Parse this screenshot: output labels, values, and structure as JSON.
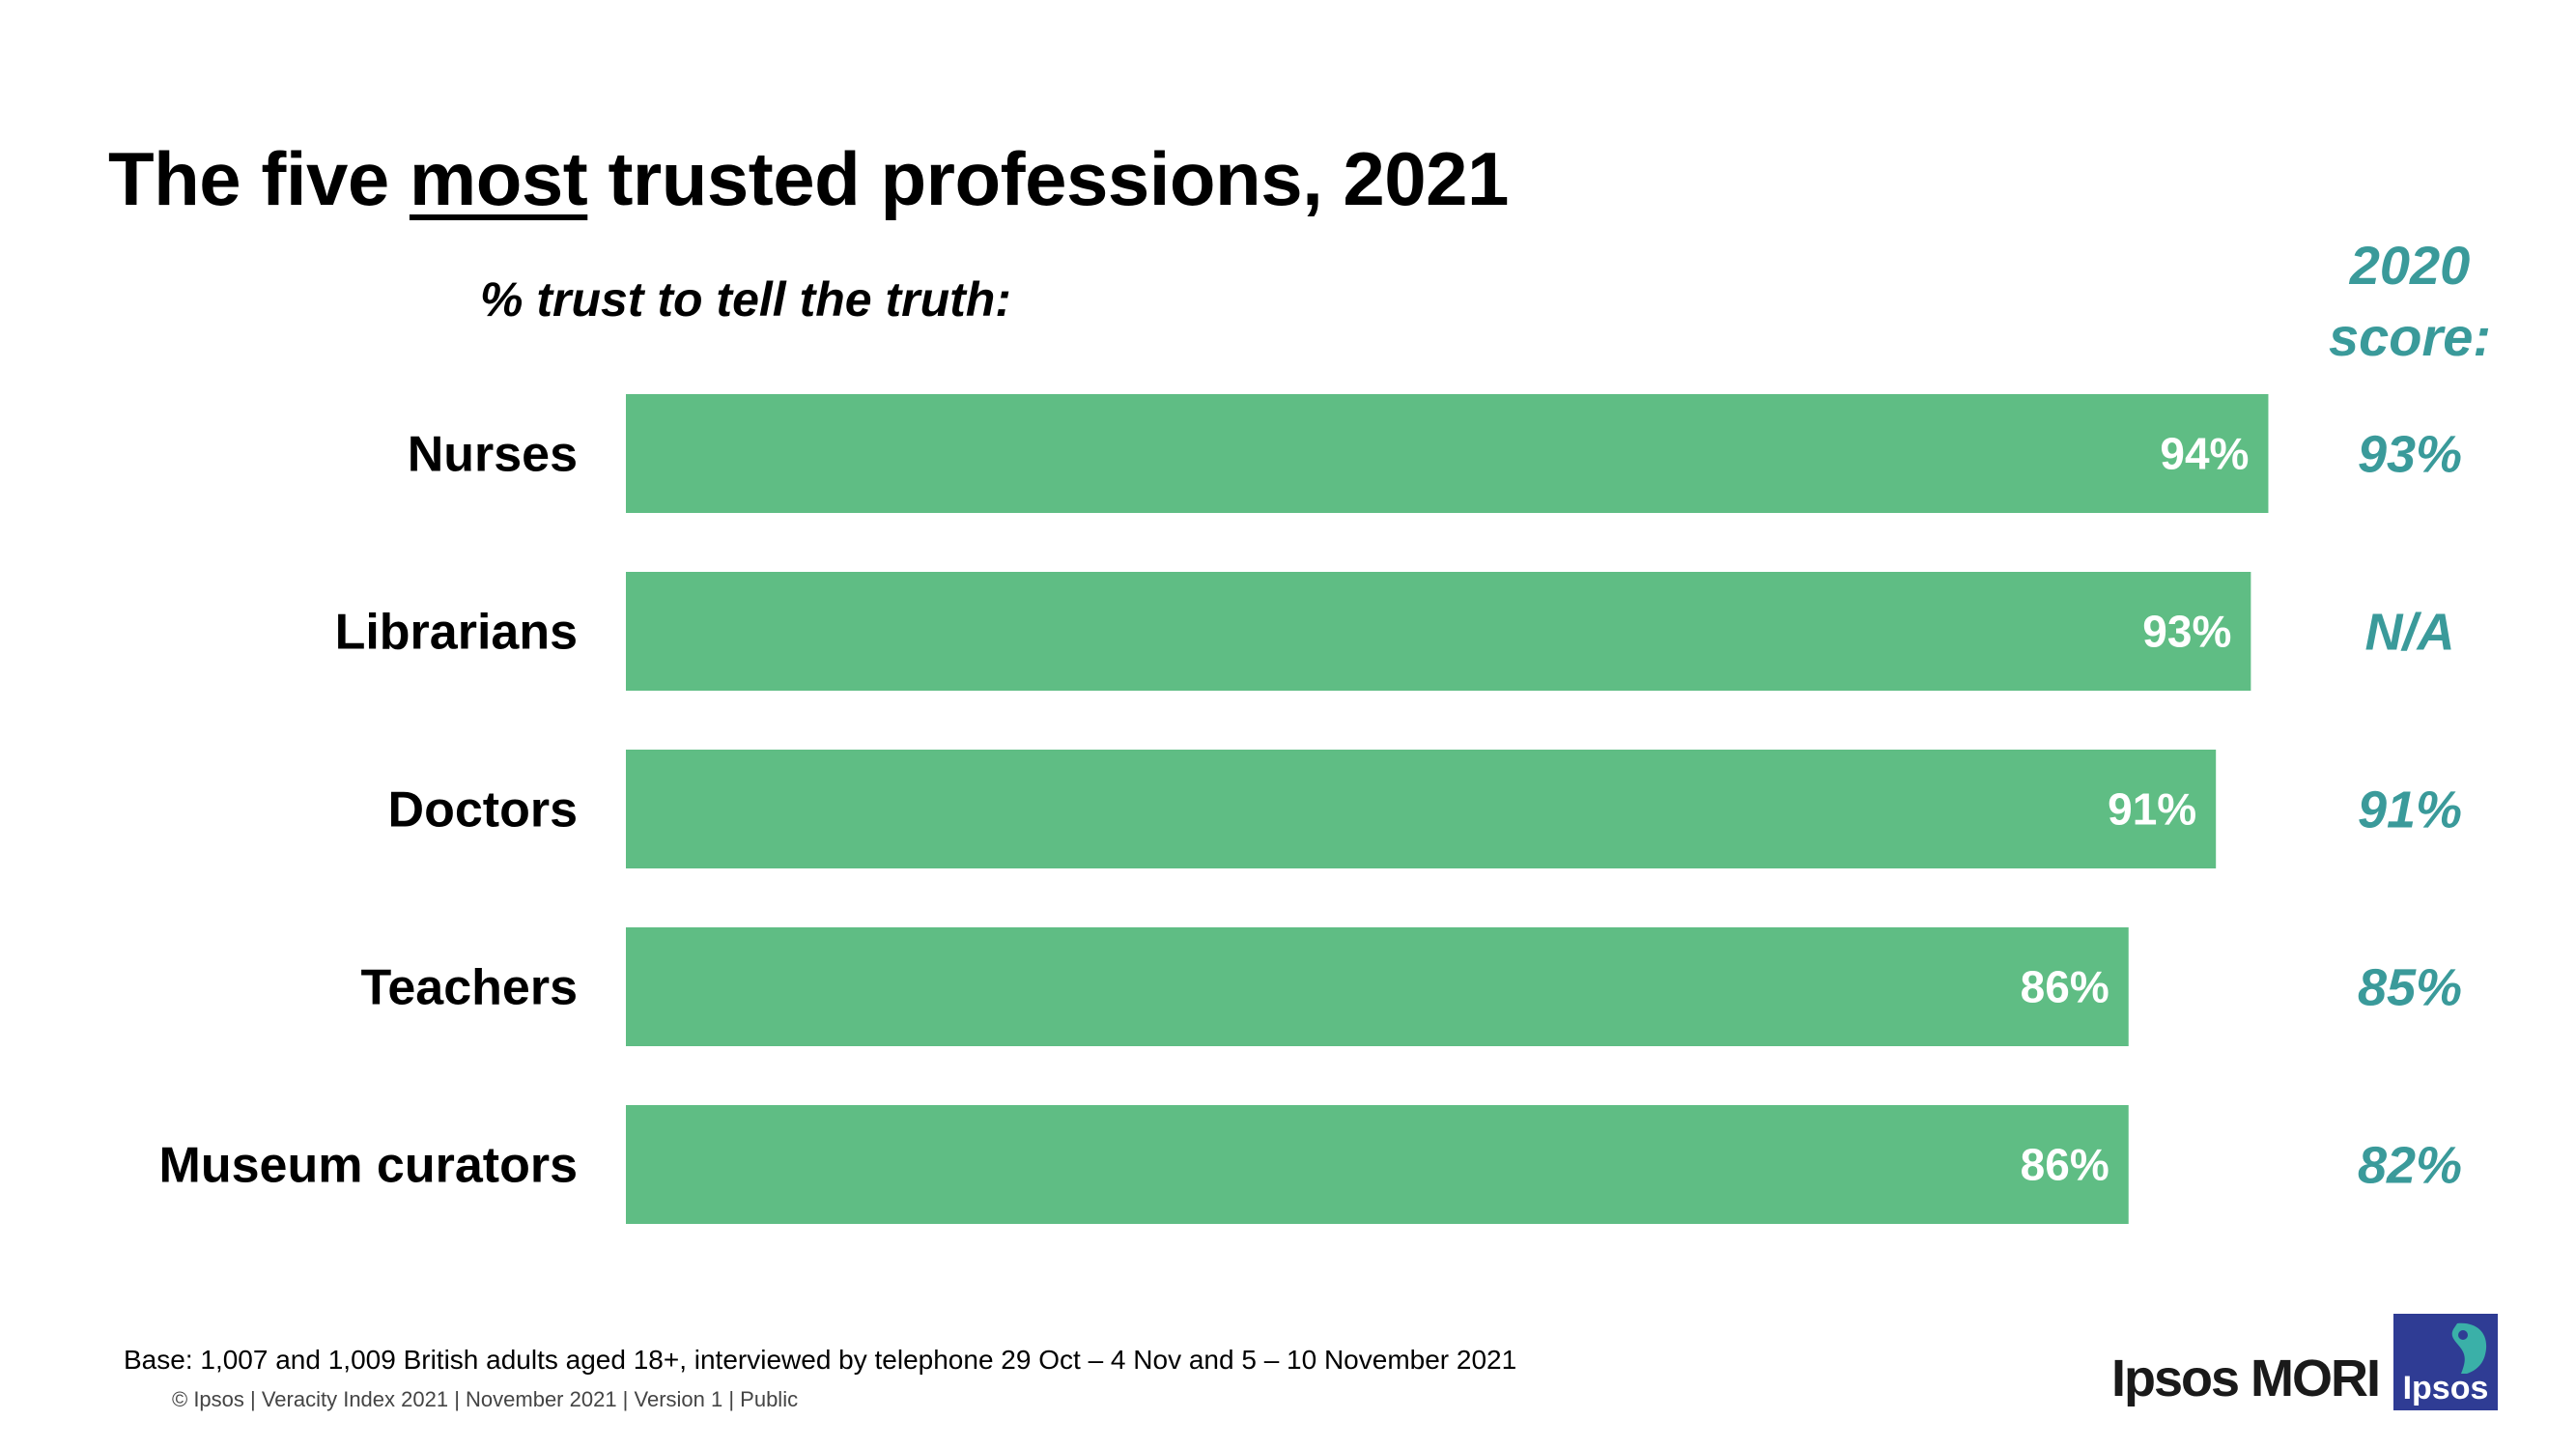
{
  "title": {
    "before": "The five ",
    "emphasis": "most",
    "after": " trusted professions, 2021"
  },
  "subtitle": "% trust to tell the truth:",
  "score_header": {
    "line1": "2020",
    "line2": "score:"
  },
  "colors": {
    "bar": "#5fbd84",
    "score": "#3a9a9a",
    "value_label": "#ffffff"
  },
  "chart_data": {
    "type": "bar",
    "orientation": "horizontal",
    "categories": [
      "Nurses",
      "Librarians",
      "Doctors",
      "Teachers",
      "Museum curators"
    ],
    "values": [
      94,
      93,
      91,
      86,
      86
    ],
    "value_labels": [
      "94%",
      "93%",
      "91%",
      "86%",
      "86%"
    ],
    "comparison": {
      "name": "2020 score",
      "labels": [
        "93%",
        "N/A",
        "91%",
        "85%",
        "82%"
      ]
    },
    "xlim": [
      0,
      100
    ],
    "title": "The five most trusted professions, 2021",
    "xlabel": "% trust to tell the truth:",
    "ylabel": "",
    "grid": false
  },
  "footer": {
    "base": "Base: 1,007 and 1,009 British adults aged 18+, interviewed by telephone 29 Oct – 4 Nov and 5 – 10 November 2021",
    "copyright": "© Ipsos | Veracity Index 2021 | November 2021 | Version 1 | Public"
  },
  "brand": {
    "wordmark": "Ipsos MORI",
    "logo_text": "Ipsos"
  }
}
